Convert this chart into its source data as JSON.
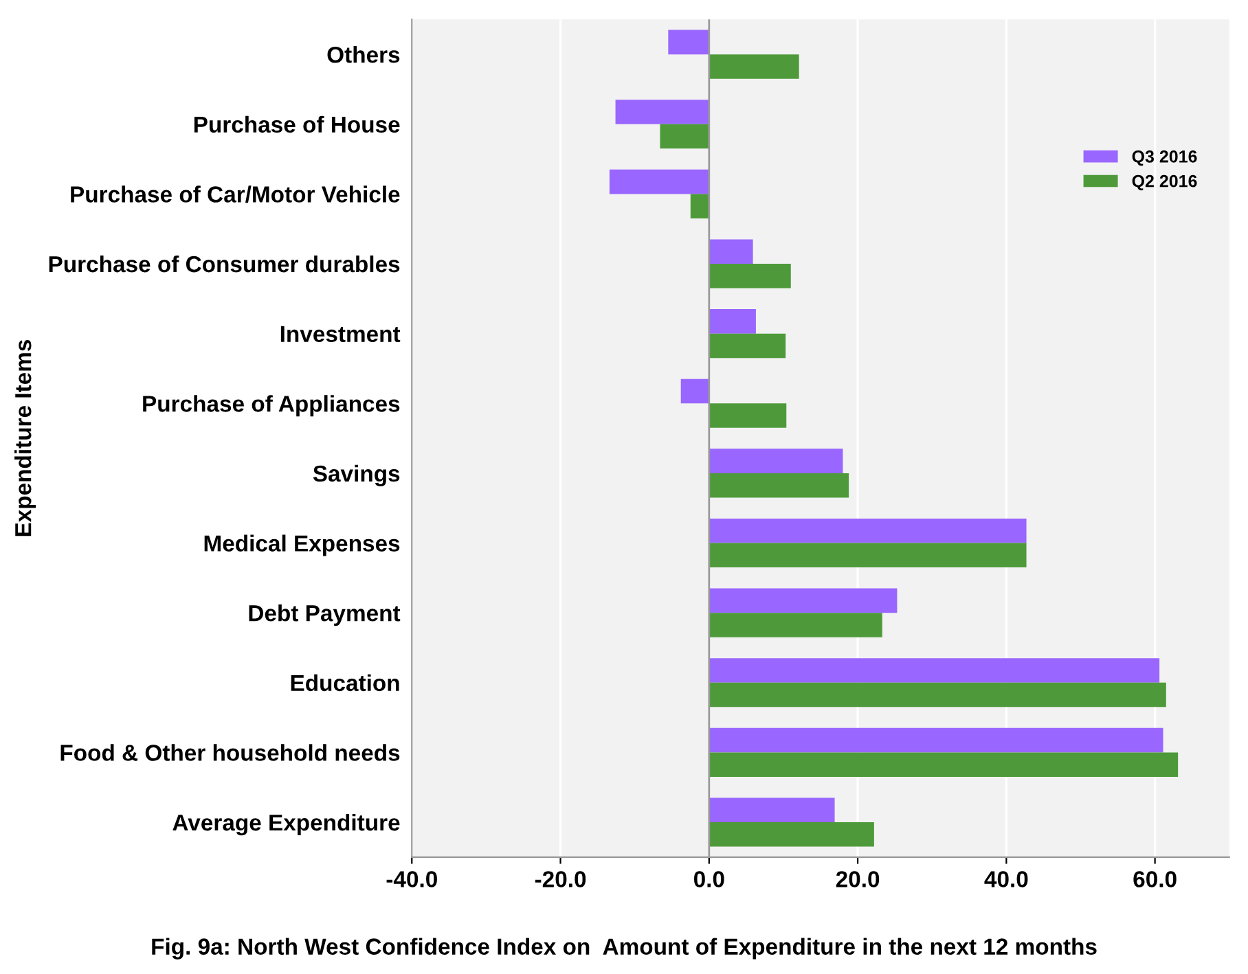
{
  "chart_data": {
    "type": "bar",
    "orientation": "horizontal",
    "title": "Fig. 9a: North West Confidence Index on  Amount of Expenditure in the next 12 months",
    "ylabel": "Expenditure Items",
    "categories": [
      "Others",
      "Purchase of House",
      "Purchase of Car/Motor Vehicle",
      "Purchase of Consumer durables",
      "Investment",
      "Purchase of Appliances",
      "Savings",
      "Medical Expenses",
      "Debt Payment",
      "Education",
      "Food & Other household needs",
      "Average Expenditure"
    ],
    "series": [
      {
        "name": "Q3 2016",
        "color": "#9966ff",
        "values": [
          -5.5,
          -12.6,
          -13.4,
          5.9,
          6.3,
          -3.8,
          18.0,
          42.7,
          25.3,
          60.6,
          61.1,
          16.9
        ]
      },
      {
        "name": "Q2 2016",
        "color": "#4e9a3a",
        "values": [
          12.1,
          -6.6,
          -2.5,
          11.0,
          10.3,
          10.4,
          18.8,
          42.7,
          23.3,
          61.5,
          63.1,
          22.2
        ]
      }
    ],
    "xlim": [
      -40,
      70
    ],
    "xticks": [
      {
        "value": -40,
        "label": "-40.0"
      },
      {
        "value": -20,
        "label": "-20.0"
      },
      {
        "value": 0,
        "label": "0.0"
      },
      {
        "value": 20,
        "label": "20.0"
      },
      {
        "value": 40,
        "label": "40.0"
      },
      {
        "value": 60,
        "label": "60.0"
      }
    ],
    "grid": "x",
    "legend": "right"
  }
}
